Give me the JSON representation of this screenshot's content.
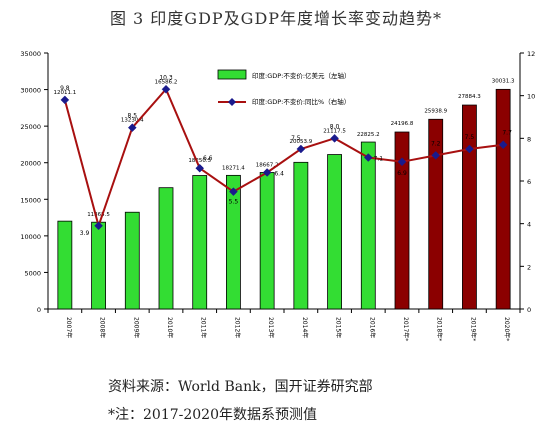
{
  "figure": {
    "title": "图 3 印度GDP及GDP年度增长率变动趋势*",
    "source": "资料来源：World Bank，国开证券研究部",
    "note": "*注：2017-2020年数据系预测值"
  },
  "colors": {
    "actual_bar": "#33dd33",
    "forecast_bar": "#8b0000",
    "line": "#a81010",
    "marker": "#1a1a8c"
  },
  "chart_data": {
    "type": "bar",
    "categories": [
      "2007年",
      "2008年",
      "2009年",
      "2010年",
      "2011年",
      "2012年",
      "2013年",
      "2014年",
      "2015年",
      "2016年",
      "2017年*",
      "2018年*",
      "2019年*",
      "2020年*"
    ],
    "series": [
      {
        "name": "印度:GDP:不变价:亿美元（左轴）",
        "type": "bar",
        "axis": "left",
        "values": [
          12011.1,
          11865.5,
          13230.4,
          16586.2,
          18250.5,
          18271.4,
          18667.2,
          20053.9,
          21117.5,
          22825.2,
          24196.8,
          25938.9,
          27884.3,
          30031.3
        ],
        "labels": [
          "12011.1",
          "11865.5",
          "13230.4",
          "16586.2",
          "18250.5",
          "18271.4",
          "18667.2",
          "20053.9",
          "21117.5",
          "22825.2",
          "24196.8",
          "25938.9",
          "27884.3",
          "30031.3"
        ],
        "forecast_from_index": 10
      },
      {
        "name": "印度:GDP:不变价:同比%（右轴）",
        "type": "line",
        "axis": "right",
        "values": [
          9.8,
          3.9,
          8.5,
          10.3,
          6.6,
          5.5,
          6.4,
          7.5,
          8.0,
          7.1,
          6.9,
          7.2,
          7.5,
          7.7
        ],
        "labels": [
          "9.8",
          "3.9",
          "8.5",
          "10.3",
          "6.6",
          "5.5",
          "6.4",
          "7.5",
          "8.0",
          "7.1",
          "6.9",
          "7.2",
          "7.5",
          "7.7"
        ]
      }
    ],
    "y_left": {
      "min": 0,
      "max": 35000,
      "ticks": [
        "0",
        "5000",
        "10000",
        "15000",
        "20000",
        "25000",
        "30000",
        "35000"
      ]
    },
    "y_right": {
      "min": 0,
      "max": 12,
      "ticks": [
        "0",
        "2",
        "4",
        "6",
        "8",
        "10",
        "12"
      ]
    },
    "grid": false,
    "legend": "top-center"
  }
}
